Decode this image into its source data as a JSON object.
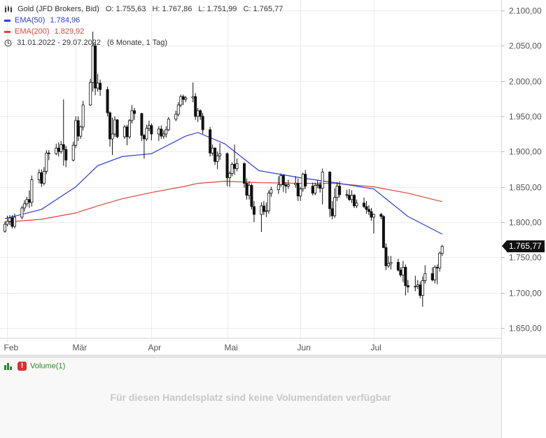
{
  "header": {
    "instrument": "Gold (JFD Brokers, Bid)",
    "open": "O: 1.755,63",
    "high": "H: 1.767,86",
    "low": "L: 1.751,99",
    "close": "C: 1.765,77",
    "ema50_label": "EMA(50)",
    "ema50_value": "1.784,96",
    "ema200_label": "EMA(200)",
    "ema200_value": "1.829,92",
    "date_range": "31.01.2022 - 29.07.2022",
    "period": "(6 Monate, 1 Tag)"
  },
  "price_flag": "1.765,77",
  "volume": {
    "label": "Volume(1)",
    "message": "Für diesen Handelsplatz sind keine Volumendaten verfügbar"
  },
  "colors": {
    "ema50": "#2c3fd9",
    "ema200": "#e0453a",
    "candle": "#111111",
    "grid": "#ececec"
  },
  "chart_data": {
    "type": "candlestick",
    "y_tick_labels": [
      "2.100,00",
      "2.050,00",
      "2.000,00",
      "1.950,00",
      "1.900,00",
      "1.850,00",
      "1.800,00",
      "1.750,00",
      "1.700,00",
      "1.650,00"
    ],
    "y_ticks": [
      2100,
      2050,
      2000,
      1950,
      1900,
      1850,
      1800,
      1750,
      1700,
      1650
    ],
    "ylim": [
      1637,
      2106
    ],
    "x_tick_labels": [
      "Feb",
      "Mär",
      "Apr",
      "Mai",
      "Jun",
      "Jul"
    ],
    "x_ticks": [
      "2022-02-01",
      "2022-03-01",
      "2022-04-01",
      "2022-05-02",
      "2022-06-01",
      "2022-07-01"
    ],
    "xlim": [
      "2022-01-31",
      "2022-08-15"
    ],
    "grid": true,
    "series": [
      {
        "name": "EMA(50)",
        "x": [
          "2022-01-31",
          "2022-02-15",
          "2022-03-01",
          "2022-03-10",
          "2022-03-20",
          "2022-04-01",
          "2022-04-15",
          "2022-04-20",
          "2022-05-01",
          "2022-05-15",
          "2022-06-01",
          "2022-06-15",
          "2022-07-01",
          "2022-07-15",
          "2022-07-29"
        ],
        "y": [
          1805,
          1818,
          1850,
          1880,
          1893,
          1897,
          1922,
          1927,
          1911,
          1873,
          1863,
          1856,
          1847,
          1808,
          1783
        ]
      },
      {
        "name": "EMA(200)",
        "x": [
          "2022-01-31",
          "2022-02-15",
          "2022-03-01",
          "2022-03-10",
          "2022-03-20",
          "2022-04-01",
          "2022-04-15",
          "2022-04-20",
          "2022-05-01",
          "2022-05-15",
          "2022-06-01",
          "2022-06-15",
          "2022-07-01",
          "2022-07-15",
          "2022-07-29"
        ],
        "y": [
          1800,
          1804,
          1813,
          1823,
          1833,
          1842,
          1851,
          1855,
          1858,
          1856,
          1855,
          1855,
          1850,
          1841,
          1829
        ]
      }
    ],
    "candles": [
      {
        "d": "2022-01-31",
        "o": 1787,
        "h": 1801,
        "l": 1785,
        "c": 1797
      },
      {
        "d": "2022-02-01",
        "o": 1797,
        "h": 1809,
        "l": 1794,
        "c": 1801
      },
      {
        "d": "2022-02-02",
        "o": 1801,
        "h": 1810,
        "l": 1796,
        "c": 1806
      },
      {
        "d": "2022-02-03",
        "o": 1806,
        "h": 1810,
        "l": 1791,
        "c": 1794
      },
      {
        "d": "2022-02-04",
        "o": 1794,
        "h": 1812,
        "l": 1791,
        "c": 1807
      },
      {
        "d": "2022-02-07",
        "o": 1807,
        "h": 1823,
        "l": 1804,
        "c": 1820
      },
      {
        "d": "2022-02-08",
        "o": 1820,
        "h": 1831,
        "l": 1815,
        "c": 1826
      },
      {
        "d": "2022-02-09",
        "o": 1826,
        "h": 1836,
        "l": 1822,
        "c": 1832
      },
      {
        "d": "2022-02-10",
        "o": 1832,
        "h": 1845,
        "l": 1820,
        "c": 1828
      },
      {
        "d": "2022-02-11",
        "o": 1828,
        "h": 1866,
        "l": 1822,
        "c": 1860
      },
      {
        "d": "2022-02-14",
        "o": 1860,
        "h": 1875,
        "l": 1855,
        "c": 1870
      },
      {
        "d": "2022-02-15",
        "o": 1870,
        "h": 1875,
        "l": 1850,
        "c": 1855
      },
      {
        "d": "2022-02-16",
        "o": 1855,
        "h": 1878,
        "l": 1852,
        "c": 1872
      },
      {
        "d": "2022-02-17",
        "o": 1872,
        "h": 1902,
        "l": 1868,
        "c": 1898
      },
      {
        "d": "2022-02-18",
        "o": 1898,
        "h": 1902,
        "l": 1888,
        "c": 1897
      },
      {
        "d": "2022-02-21",
        "o": 1897,
        "h": 1911,
        "l": 1895,
        "c": 1905
      },
      {
        "d": "2022-02-22",
        "o": 1905,
        "h": 1913,
        "l": 1893,
        "c": 1900
      },
      {
        "d": "2022-02-23",
        "o": 1900,
        "h": 1915,
        "l": 1897,
        "c": 1910
      },
      {
        "d": "2022-02-24",
        "o": 1910,
        "h": 1974,
        "l": 1880,
        "c": 1903
      },
      {
        "d": "2022-02-25",
        "o": 1903,
        "h": 1908,
        "l": 1878,
        "c": 1888
      },
      {
        "d": "2022-02-28",
        "o": 1888,
        "h": 1914,
        "l": 1886,
        "c": 1909
      },
      {
        "d": "2022-03-01",
        "o": 1909,
        "h": 1950,
        "l": 1905,
        "c": 1944
      },
      {
        "d": "2022-03-02",
        "o": 1944,
        "h": 1950,
        "l": 1915,
        "c": 1922
      },
      {
        "d": "2022-03-03",
        "o": 1922,
        "h": 1937,
        "l": 1918,
        "c": 1935
      },
      {
        "d": "2022-03-04",
        "o": 1935,
        "h": 1972,
        "l": 1930,
        "c": 1966
      },
      {
        "d": "2022-03-07",
        "o": 1966,
        "h": 2003,
        "l": 1965,
        "c": 1998
      },
      {
        "d": "2022-03-08",
        "o": 1998,
        "h": 2070,
        "l": 1985,
        "c": 2050
      },
      {
        "d": "2022-03-09",
        "o": 2050,
        "h": 2055,
        "l": 1980,
        "c": 1990
      },
      {
        "d": "2022-03-10",
        "o": 1990,
        "h": 2010,
        "l": 1985,
        "c": 1997
      },
      {
        "d": "2022-03-11",
        "o": 1997,
        "h": 2002,
        "l": 1979,
        "c": 1988
      },
      {
        "d": "2022-03-14",
        "o": 1988,
        "h": 1992,
        "l": 1950,
        "c": 1955
      },
      {
        "d": "2022-03-15",
        "o": 1955,
        "h": 1957,
        "l": 1907,
        "c": 1918
      },
      {
        "d": "2022-03-16",
        "o": 1918,
        "h": 1948,
        "l": 1895,
        "c": 1925
      },
      {
        "d": "2022-03-17",
        "o": 1925,
        "h": 1950,
        "l": 1921,
        "c": 1945
      },
      {
        "d": "2022-03-18",
        "o": 1945,
        "h": 1946,
        "l": 1919,
        "c": 1921
      },
      {
        "d": "2022-03-21",
        "o": 1921,
        "h": 1938,
        "l": 1918,
        "c": 1935
      },
      {
        "d": "2022-03-22",
        "o": 1935,
        "h": 1938,
        "l": 1909,
        "c": 1921
      },
      {
        "d": "2022-03-23",
        "o": 1921,
        "h": 1946,
        "l": 1918,
        "c": 1944
      },
      {
        "d": "2022-03-24",
        "o": 1944,
        "h": 1966,
        "l": 1940,
        "c": 1958
      },
      {
        "d": "2022-03-25",
        "o": 1958,
        "h": 1962,
        "l": 1945,
        "c": 1954
      },
      {
        "d": "2022-03-28",
        "o": 1954,
        "h": 1955,
        "l": 1915,
        "c": 1923
      },
      {
        "d": "2022-03-29",
        "o": 1923,
        "h": 1925,
        "l": 1890,
        "c": 1918
      },
      {
        "d": "2022-03-30",
        "o": 1918,
        "h": 1938,
        "l": 1915,
        "c": 1933
      },
      {
        "d": "2022-03-31",
        "o": 1933,
        "h": 1944,
        "l": 1929,
        "c": 1937
      },
      {
        "d": "2022-04-01",
        "o": 1937,
        "h": 1940,
        "l": 1916,
        "c": 1925
      },
      {
        "d": "2022-04-04",
        "o": 1925,
        "h": 1936,
        "l": 1915,
        "c": 1932
      },
      {
        "d": "2022-04-05",
        "o": 1932,
        "h": 1937,
        "l": 1918,
        "c": 1922
      },
      {
        "d": "2022-04-06",
        "o": 1922,
        "h": 1930,
        "l": 1918,
        "c": 1925
      },
      {
        "d": "2022-04-07",
        "o": 1925,
        "h": 1936,
        "l": 1920,
        "c": 1931
      },
      {
        "d": "2022-04-08",
        "o": 1931,
        "h": 1949,
        "l": 1929,
        "c": 1946
      },
      {
        "d": "2022-04-11",
        "o": 1946,
        "h": 1958,
        "l": 1943,
        "c": 1953
      },
      {
        "d": "2022-04-12",
        "o": 1953,
        "h": 1970,
        "l": 1950,
        "c": 1966
      },
      {
        "d": "2022-04-13",
        "o": 1966,
        "h": 1981,
        "l": 1963,
        "c": 1978
      },
      {
        "d": "2022-04-14",
        "o": 1978,
        "h": 1981,
        "l": 1966,
        "c": 1974
      },
      {
        "d": "2022-04-15",
        "o": 1974,
        "h": 1979,
        "l": 1970,
        "c": 1976
      },
      {
        "d": "2022-04-18",
        "o": 1976,
        "h": 1998,
        "l": 1970,
        "c": 1978
      },
      {
        "d": "2022-04-19",
        "o": 1978,
        "h": 1983,
        "l": 1945,
        "c": 1950
      },
      {
        "d": "2022-04-20",
        "o": 1950,
        "h": 1962,
        "l": 1942,
        "c": 1958
      },
      {
        "d": "2022-04-21",
        "o": 1958,
        "h": 1960,
        "l": 1945,
        "c": 1950
      },
      {
        "d": "2022-04-22",
        "o": 1950,
        "h": 1955,
        "l": 1925,
        "c": 1931
      },
      {
        "d": "2022-04-25",
        "o": 1931,
        "h": 1935,
        "l": 1893,
        "c": 1898
      },
      {
        "d": "2022-04-26",
        "o": 1898,
        "h": 1910,
        "l": 1894,
        "c": 1905
      },
      {
        "d": "2022-04-27",
        "o": 1905,
        "h": 1906,
        "l": 1881,
        "c": 1886
      },
      {
        "d": "2022-04-28",
        "o": 1886,
        "h": 1900,
        "l": 1875,
        "c": 1894
      },
      {
        "d": "2022-04-29",
        "o": 1894,
        "h": 1912,
        "l": 1888,
        "c": 1897
      },
      {
        "d": "2022-05-02",
        "o": 1897,
        "h": 1899,
        "l": 1851,
        "c": 1863
      },
      {
        "d": "2022-05-03",
        "o": 1863,
        "h": 1872,
        "l": 1850,
        "c": 1869
      },
      {
        "d": "2022-05-04",
        "o": 1869,
        "h": 1885,
        "l": 1865,
        "c": 1882
      },
      {
        "d": "2022-05-05",
        "o": 1882,
        "h": 1910,
        "l": 1867,
        "c": 1876
      },
      {
        "d": "2022-05-06",
        "o": 1876,
        "h": 1890,
        "l": 1872,
        "c": 1883
      },
      {
        "d": "2022-05-09",
        "o": 1883,
        "h": 1885,
        "l": 1849,
        "c": 1855
      },
      {
        "d": "2022-05-10",
        "o": 1855,
        "h": 1862,
        "l": 1832,
        "c": 1838
      },
      {
        "d": "2022-05-11",
        "o": 1838,
        "h": 1858,
        "l": 1832,
        "c": 1852
      },
      {
        "d": "2022-05-12",
        "o": 1852,
        "h": 1855,
        "l": 1818,
        "c": 1822
      },
      {
        "d": "2022-05-13",
        "o": 1822,
        "h": 1830,
        "l": 1800,
        "c": 1811
      },
      {
        "d": "2022-05-16",
        "o": 1811,
        "h": 1828,
        "l": 1786,
        "c": 1823
      },
      {
        "d": "2022-05-17",
        "o": 1823,
        "h": 1830,
        "l": 1810,
        "c": 1815
      },
      {
        "d": "2022-05-18",
        "o": 1815,
        "h": 1828,
        "l": 1807,
        "c": 1816
      },
      {
        "d": "2022-05-19",
        "o": 1816,
        "h": 1845,
        "l": 1812,
        "c": 1841
      },
      {
        "d": "2022-05-20",
        "o": 1841,
        "h": 1850,
        "l": 1836,
        "c": 1846
      },
      {
        "d": "2022-05-23",
        "o": 1846,
        "h": 1865,
        "l": 1840,
        "c": 1853
      },
      {
        "d": "2022-05-24",
        "o": 1853,
        "h": 1869,
        "l": 1850,
        "c": 1866
      },
      {
        "d": "2022-05-25",
        "o": 1866,
        "h": 1868,
        "l": 1843,
        "c": 1853
      },
      {
        "d": "2022-05-26",
        "o": 1853,
        "h": 1857,
        "l": 1841,
        "c": 1851
      },
      {
        "d": "2022-05-27",
        "o": 1851,
        "h": 1860,
        "l": 1847,
        "c": 1853
      },
      {
        "d": "2022-05-30",
        "o": 1853,
        "h": 1865,
        "l": 1849,
        "c": 1855
      },
      {
        "d": "2022-05-31",
        "o": 1855,
        "h": 1862,
        "l": 1830,
        "c": 1837
      },
      {
        "d": "2022-06-01",
        "o": 1837,
        "h": 1850,
        "l": 1830,
        "c": 1847
      },
      {
        "d": "2022-06-02",
        "o": 1847,
        "h": 1870,
        "l": 1843,
        "c": 1868
      },
      {
        "d": "2022-06-03",
        "o": 1868,
        "h": 1874,
        "l": 1847,
        "c": 1851
      },
      {
        "d": "2022-06-06",
        "o": 1851,
        "h": 1856,
        "l": 1838,
        "c": 1841
      },
      {
        "d": "2022-06-07",
        "o": 1841,
        "h": 1856,
        "l": 1838,
        "c": 1852
      },
      {
        "d": "2022-06-08",
        "o": 1852,
        "h": 1860,
        "l": 1848,
        "c": 1853
      },
      {
        "d": "2022-06-09",
        "o": 1853,
        "h": 1857,
        "l": 1842,
        "c": 1848
      },
      {
        "d": "2022-06-10",
        "o": 1848,
        "h": 1876,
        "l": 1825,
        "c": 1871
      },
      {
        "d": "2022-06-13",
        "o": 1871,
        "h": 1872,
        "l": 1807,
        "c": 1819
      },
      {
        "d": "2022-06-14",
        "o": 1819,
        "h": 1830,
        "l": 1804,
        "c": 1809
      },
      {
        "d": "2022-06-15",
        "o": 1809,
        "h": 1848,
        "l": 1806,
        "c": 1835
      },
      {
        "d": "2022-06-16",
        "o": 1835,
        "h": 1857,
        "l": 1830,
        "c": 1851
      },
      {
        "d": "2022-06-17",
        "o": 1851,
        "h": 1858,
        "l": 1835,
        "c": 1839
      },
      {
        "d": "2022-06-20",
        "o": 1839,
        "h": 1846,
        "l": 1834,
        "c": 1838
      },
      {
        "d": "2022-06-21",
        "o": 1838,
        "h": 1847,
        "l": 1830,
        "c": 1832
      },
      {
        "d": "2022-06-22",
        "o": 1832,
        "h": 1845,
        "l": 1827,
        "c": 1838
      },
      {
        "d": "2022-06-23",
        "o": 1838,
        "h": 1840,
        "l": 1820,
        "c": 1823
      },
      {
        "d": "2022-06-24",
        "o": 1823,
        "h": 1832,
        "l": 1820,
        "c": 1827
      },
      {
        "d": "2022-06-27",
        "o": 1827,
        "h": 1835,
        "l": 1820,
        "c": 1822
      },
      {
        "d": "2022-06-28",
        "o": 1822,
        "h": 1830,
        "l": 1812,
        "c": 1818
      },
      {
        "d": "2022-06-29",
        "o": 1818,
        "h": 1824,
        "l": 1810,
        "c": 1815
      },
      {
        "d": "2022-06-30",
        "o": 1815,
        "h": 1820,
        "l": 1802,
        "c": 1807
      },
      {
        "d": "2022-07-01",
        "o": 1807,
        "h": 1812,
        "l": 1784,
        "c": 1811
      },
      {
        "d": "2022-07-04",
        "o": 1811,
        "h": 1813,
        "l": 1804,
        "c": 1808
      },
      {
        "d": "2022-07-05",
        "o": 1808,
        "h": 1810,
        "l": 1763,
        "c": 1764
      },
      {
        "d": "2022-07-06",
        "o": 1764,
        "h": 1770,
        "l": 1732,
        "c": 1738
      },
      {
        "d": "2022-07-07",
        "o": 1738,
        "h": 1752,
        "l": 1735,
        "c": 1741
      },
      {
        "d": "2022-07-08",
        "o": 1741,
        "h": 1752,
        "l": 1733,
        "c": 1743
      },
      {
        "d": "2022-07-11",
        "o": 1743,
        "h": 1748,
        "l": 1730,
        "c": 1732
      },
      {
        "d": "2022-07-12",
        "o": 1732,
        "h": 1736,
        "l": 1722,
        "c": 1725
      },
      {
        "d": "2022-07-13",
        "o": 1725,
        "h": 1745,
        "l": 1715,
        "c": 1736
      },
      {
        "d": "2022-07-14",
        "o": 1736,
        "h": 1740,
        "l": 1696,
        "c": 1710
      },
      {
        "d": "2022-07-15",
        "o": 1710,
        "h": 1718,
        "l": 1700,
        "c": 1708
      },
      {
        "d": "2022-07-18",
        "o": 1708,
        "h": 1724,
        "l": 1702,
        "c": 1709
      },
      {
        "d": "2022-07-19",
        "o": 1709,
        "h": 1718,
        "l": 1705,
        "c": 1711
      },
      {
        "d": "2022-07-20",
        "o": 1711,
        "h": 1716,
        "l": 1692,
        "c": 1696
      },
      {
        "d": "2022-07-21",
        "o": 1696,
        "h": 1723,
        "l": 1680,
        "c": 1717
      },
      {
        "d": "2022-07-22",
        "o": 1717,
        "h": 1739,
        "l": 1713,
        "c": 1727
      },
      {
        "d": "2022-07-25",
        "o": 1727,
        "h": 1736,
        "l": 1716,
        "c": 1718
      },
      {
        "d": "2022-07-26",
        "o": 1718,
        "h": 1739,
        "l": 1713,
        "c": 1736
      },
      {
        "d": "2022-07-27",
        "o": 1736,
        "h": 1740,
        "l": 1712,
        "c": 1735
      },
      {
        "d": "2022-07-28",
        "o": 1735,
        "h": 1758,
        "l": 1730,
        "c": 1756
      },
      {
        "d": "2022-07-29",
        "o": 1755.63,
        "h": 1767.86,
        "l": 1751.99,
        "c": 1765.77
      }
    ]
  }
}
